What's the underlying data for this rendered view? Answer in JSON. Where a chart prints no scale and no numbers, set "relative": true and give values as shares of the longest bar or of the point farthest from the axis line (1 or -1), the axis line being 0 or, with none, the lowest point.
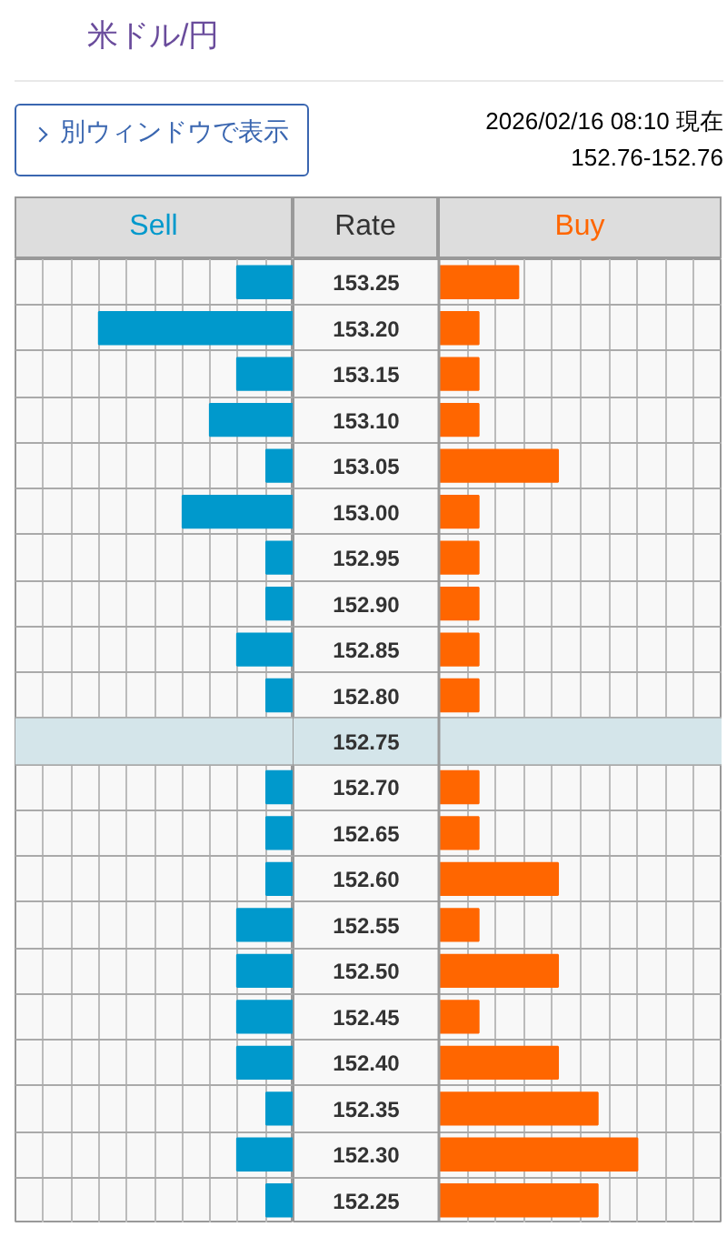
{
  "chart_data": [
    {
      "type": "bar",
      "orientation": "horizontal",
      "relative": true,
      "title": "米ドル/円",
      "annotations": [
        "別ウィンドウで表示",
        "2026/02/16 08:10 現在",
        "152.76-152.76"
      ],
      "categories": [
        "153.25",
        "153.20",
        "153.15",
        "153.10",
        "153.05",
        "153.00",
        "152.95",
        "152.90",
        "152.85",
        "152.80",
        "152.75",
        "152.70",
        "152.65",
        "152.60",
        "152.55",
        "152.50",
        "152.45",
        "152.40",
        "152.35",
        "152.30",
        "152.25"
      ],
      "series": [
        {
          "name": "Sell",
          "color": "#0099cc",
          "values": [
            -0.29,
            -1,
            -0.29,
            -0.43,
            -0.14,
            -0.57,
            -0.14,
            -0.14,
            -0.29,
            -0.14,
            0,
            -0.14,
            -0.14,
            -0.14,
            -0.29,
            -0.29,
            -0.29,
            -0.29,
            -0.14,
            -0.29,
            -0.14
          ]
        }
      ],
      "tick_labels": false,
      "grid": "x",
      "bands": [
        {
          "axis": "y",
          "from": "152.75",
          "to": "152.75",
          "color": "#d4e5ea"
        }
      ]
    },
    {
      "type": "bar",
      "orientation": "horizontal",
      "relative": true,
      "ylabel": "Rate",
      "categories": [
        "153.25",
        "153.20",
        "153.15",
        "153.10",
        "153.05",
        "153.00",
        "152.95",
        "152.90",
        "152.85",
        "152.80",
        "152.75",
        "152.70",
        "152.65",
        "152.60",
        "152.55",
        "152.50",
        "152.45",
        "152.40",
        "152.35",
        "152.30",
        "152.25"
      ],
      "series": [
        {
          "name": "Buy",
          "color": "#ff6600",
          "values": [
            0.4,
            0.2,
            0.2,
            0.2,
            0.6,
            0.2,
            0.2,
            0.2,
            0.2,
            0.2,
            0,
            0.2,
            0.2,
            0.6,
            0.2,
            0.6,
            0.2,
            0.6,
            0.8,
            1,
            0.8
          ]
        }
      ],
      "grid": "x",
      "bands": [
        {
          "axis": "y",
          "from": "152.75",
          "to": "152.75",
          "color": "#d4e5ea"
        }
      ]
    }
  ]
}
